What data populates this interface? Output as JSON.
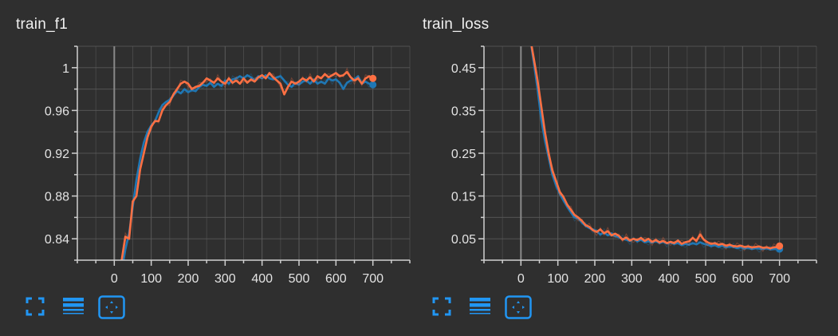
{
  "colors": {
    "background": "#2f2f2f",
    "grid": "#5b5b5b",
    "axis": "#d0d0d0",
    "zero_line": "#8a8a8a",
    "series_blue": "#1f77b4",
    "series_orange": "#ff7043",
    "toolbar_icon": "#2196f3"
  },
  "toolbar": {
    "icons": [
      "fullscreen-icon",
      "toggle-log-y-icon",
      "fit-domain-icon"
    ]
  },
  "chart_data": [
    {
      "type": "line",
      "title": "train_f1",
      "xlabel": "",
      "ylabel": "",
      "xlim": [
        -100,
        800
      ],
      "ylim": [
        0.82,
        1.02
      ],
      "x_ticks": [
        0,
        100,
        200,
        300,
        400,
        500,
        600,
        700
      ],
      "x_tick_labels": [
        "0",
        "100",
        "200",
        "300",
        "400",
        "500",
        "600",
        "700"
      ],
      "y_ticks": [
        0.84,
        0.88,
        0.92,
        0.96,
        1.0
      ],
      "y_tick_labels": [
        "0.84",
        "0.88",
        "0.92",
        "0.96",
        "1"
      ],
      "grid": true,
      "legend": "none",
      "series": [
        {
          "color": "#1f77b4",
          "x": [
            20,
            30,
            40,
            50,
            60,
            70,
            80,
            90,
            100,
            110,
            120,
            130,
            140,
            150,
            160,
            170,
            180,
            190,
            200,
            210,
            220,
            230,
            240,
            250,
            260,
            270,
            280,
            290,
            300,
            310,
            320,
            330,
            340,
            350,
            360,
            370,
            380,
            390,
            400,
            410,
            420,
            430,
            440,
            450,
            460,
            470,
            480,
            490,
            500,
            510,
            520,
            530,
            540,
            550,
            560,
            570,
            580,
            590,
            600,
            610,
            620,
            630,
            640,
            650,
            660,
            670,
            680,
            690,
            700
          ],
          "y": [
            0.81,
            0.83,
            0.845,
            0.87,
            0.895,
            0.915,
            0.93,
            0.94,
            0.946,
            0.95,
            0.958,
            0.965,
            0.968,
            0.97,
            0.974,
            0.978,
            0.976,
            0.98,
            0.977,
            0.979,
            0.978,
            0.982,
            0.984,
            0.983,
            0.986,
            0.982,
            0.985,
            0.983,
            0.988,
            0.985,
            0.989,
            0.99,
            0.992,
            0.99,
            0.993,
            0.991,
            0.988,
            0.992,
            0.99,
            0.993,
            0.99,
            0.989,
            0.991,
            0.992,
            0.988,
            0.984,
            0.982,
            0.986,
            0.984,
            0.987,
            0.988,
            0.985,
            0.989,
            0.985,
            0.987,
            0.985,
            0.99,
            0.988,
            0.989,
            0.986,
            0.98,
            0.986,
            0.988,
            0.989,
            0.992,
            0.985,
            0.987,
            0.985,
            0.984
          ]
        },
        {
          "color": "#ff7043",
          "x": [
            20,
            30,
            40,
            50,
            60,
            70,
            80,
            90,
            100,
            110,
            120,
            130,
            140,
            150,
            160,
            170,
            180,
            190,
            200,
            210,
            220,
            230,
            240,
            250,
            260,
            270,
            280,
            290,
            300,
            310,
            320,
            330,
            340,
            350,
            360,
            370,
            380,
            390,
            400,
            410,
            420,
            430,
            440,
            450,
            460,
            470,
            480,
            490,
            500,
            510,
            520,
            530,
            540,
            550,
            560,
            570,
            580,
            590,
            600,
            610,
            620,
            630,
            640,
            650,
            660,
            670,
            680,
            690,
            700
          ],
          "y": [
            0.82,
            0.842,
            0.84,
            0.875,
            0.88,
            0.905,
            0.92,
            0.935,
            0.945,
            0.95,
            0.95,
            0.96,
            0.965,
            0.968,
            0.975,
            0.98,
            0.985,
            0.987,
            0.985,
            0.98,
            0.982,
            0.983,
            0.986,
            0.99,
            0.988,
            0.986,
            0.99,
            0.987,
            0.985,
            0.99,
            0.986,
            0.988,
            0.985,
            0.99,
            0.986,
            0.989,
            0.987,
            0.991,
            0.993,
            0.99,
            0.995,
            0.991,
            0.988,
            0.985,
            0.975,
            0.982,
            0.987,
            0.985,
            0.987,
            0.99,
            0.988,
            0.991,
            0.987,
            0.992,
            0.99,
            0.994,
            0.991,
            0.993,
            0.995,
            0.992,
            0.993,
            0.996,
            0.991,
            0.988,
            0.99,
            0.985,
            0.99,
            0.992,
            0.99
          ]
        }
      ]
    },
    {
      "type": "line",
      "title": "train_loss",
      "xlabel": "",
      "ylabel": "",
      "xlim": [
        -100,
        800
      ],
      "ylim": [
        0.0,
        0.5
      ],
      "x_ticks": [
        0,
        100,
        200,
        300,
        400,
        500,
        600,
        700
      ],
      "x_tick_labels": [
        "0",
        "100",
        "200",
        "300",
        "400",
        "500",
        "600",
        "700"
      ],
      "y_ticks": [
        0.05,
        0.15,
        0.25,
        0.35,
        0.45
      ],
      "y_tick_labels": [
        "0.05",
        "0.15",
        "0.25",
        "0.35",
        "0.45"
      ],
      "grid": true,
      "legend": "none",
      "series": [
        {
          "color": "#1f77b4",
          "x": [
            25,
            35,
            45,
            55,
            65,
            75,
            85,
            95,
            105,
            115,
            125,
            135,
            145,
            155,
            165,
            175,
            185,
            195,
            205,
            215,
            225,
            235,
            245,
            255,
            265,
            275,
            285,
            295,
            305,
            315,
            325,
            335,
            345,
            355,
            365,
            375,
            385,
            395,
            405,
            415,
            425,
            435,
            445,
            455,
            465,
            475,
            485,
            495,
            505,
            515,
            525,
            535,
            545,
            555,
            565,
            575,
            585,
            595,
            605,
            615,
            625,
            635,
            645,
            655,
            665,
            675,
            685,
            695,
            700
          ],
          "y": [
            0.52,
            0.46,
            0.4,
            0.33,
            0.28,
            0.24,
            0.2,
            0.175,
            0.155,
            0.14,
            0.125,
            0.112,
            0.1,
            0.098,
            0.088,
            0.08,
            0.075,
            0.072,
            0.068,
            0.06,
            0.065,
            0.058,
            0.063,
            0.056,
            0.054,
            0.05,
            0.048,
            0.045,
            0.05,
            0.044,
            0.048,
            0.042,
            0.044,
            0.041,
            0.045,
            0.04,
            0.043,
            0.039,
            0.041,
            0.038,
            0.04,
            0.035,
            0.038,
            0.036,
            0.04,
            0.037,
            0.042,
            0.038,
            0.036,
            0.033,
            0.035,
            0.031,
            0.034,
            0.03,
            0.032,
            0.031,
            0.028,
            0.03,
            0.027,
            0.029,
            0.026,
            0.028,
            0.027,
            0.026,
            0.028,
            0.025,
            0.026,
            0.027,
            0.026
          ]
        },
        {
          "color": "#ff7043",
          "x": [
            25,
            35,
            45,
            55,
            65,
            75,
            85,
            95,
            105,
            115,
            125,
            135,
            145,
            155,
            165,
            175,
            185,
            195,
            205,
            215,
            225,
            235,
            245,
            255,
            265,
            275,
            285,
            295,
            305,
            315,
            325,
            335,
            345,
            355,
            365,
            375,
            385,
            395,
            405,
            415,
            425,
            435,
            445,
            455,
            465,
            475,
            485,
            495,
            505,
            515,
            525,
            535,
            545,
            555,
            565,
            575,
            585,
            595,
            605,
            615,
            625,
            635,
            645,
            655,
            665,
            675,
            685,
            695,
            700
          ],
          "y": [
            0.52,
            0.47,
            0.42,
            0.36,
            0.3,
            0.25,
            0.21,
            0.185,
            0.16,
            0.148,
            0.13,
            0.118,
            0.106,
            0.1,
            0.092,
            0.082,
            0.078,
            0.07,
            0.066,
            0.072,
            0.063,
            0.068,
            0.058,
            0.062,
            0.057,
            0.048,
            0.053,
            0.046,
            0.05,
            0.047,
            0.052,
            0.045,
            0.05,
            0.043,
            0.047,
            0.042,
            0.045,
            0.04,
            0.043,
            0.04,
            0.046,
            0.038,
            0.042,
            0.044,
            0.052,
            0.045,
            0.06,
            0.048,
            0.042,
            0.038,
            0.04,
            0.036,
            0.038,
            0.034,
            0.036,
            0.033,
            0.032,
            0.034,
            0.031,
            0.032,
            0.03,
            0.031,
            0.032,
            0.029,
            0.03,
            0.028,
            0.03,
            0.031,
            0.033
          ]
        }
      ]
    }
  ]
}
